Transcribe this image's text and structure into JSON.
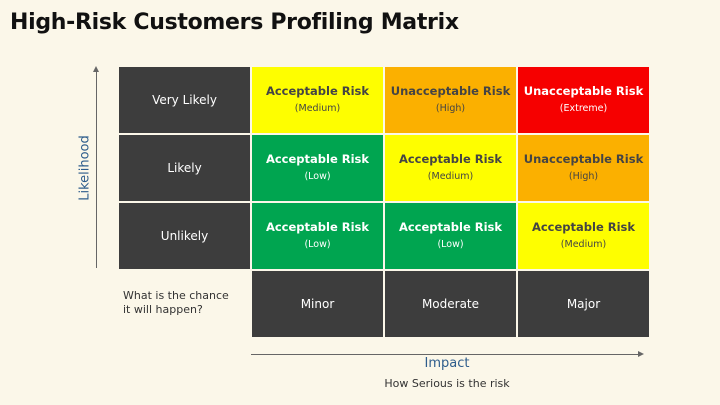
{
  "title": "High-Risk Customers Profiling Matrix",
  "y_axis": {
    "label": "Likelihood",
    "question": "What is the chance\nit will happen?"
  },
  "x_axis": {
    "label": "Impact",
    "sublabel": "How Serious is the risk"
  },
  "rows": [
    {
      "label": "Very Likely",
      "cells": [
        {
          "risk": "Acceptable Risk",
          "level": "(Medium)",
          "color": "#fefe00"
        },
        {
          "risk": "Unacceptable Risk",
          "level": "(High)",
          "color": "#fbb000"
        },
        {
          "risk": "Unacceptable Risk",
          "level": "(Extreme)",
          "color": "#f60000"
        }
      ]
    },
    {
      "label": "Likely",
      "cells": [
        {
          "risk": "Acceptable Risk",
          "level": "(Low)",
          "color": "#00a550"
        },
        {
          "risk": "Acceptable Risk",
          "level": "(Medium)",
          "color": "#fefe00"
        },
        {
          "risk": "Unacceptable Risk",
          "level": "(High)",
          "color": "#fbb000"
        }
      ]
    },
    {
      "label": "Unlikely",
      "cells": [
        {
          "risk": "Acceptable Risk",
          "level": "(Low)",
          "color": "#00a550"
        },
        {
          "risk": "Acceptable Risk",
          "level": "(Low)",
          "color": "#00a550"
        },
        {
          "risk": "Acceptable Risk",
          "level": "(Medium)",
          "color": "#fefe00"
        }
      ]
    }
  ],
  "columns": [
    "Minor",
    "Moderate",
    "Major"
  ],
  "colors": {
    "low": "#00a550",
    "medium": "#fefe00",
    "high": "#fbb000",
    "extreme": "#f60000",
    "header": "#3d3d3d"
  }
}
